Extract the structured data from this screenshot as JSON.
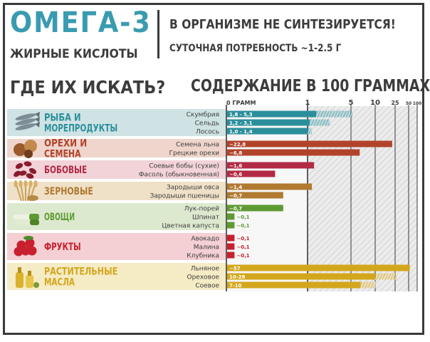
{
  "header": {
    "title": "ОМЕГА-3",
    "subtitle": "ЖИРНЫЕ КИСЛОТЫ",
    "not_synth": "В ОРГАНИЗМЕ НЕ СИНТЕЗИРУЕТСЯ!",
    "daily_need": "СУТОЧНАЯ ПОТРЕБНОСТЬ ~1-2.5 Г",
    "where": "ГДЕ ИХ ИСКАТЬ?",
    "content": "СОДЕРЖАНИЕ В 100 ГРАММАХ"
  },
  "chart_data": {
    "type": "bar",
    "orientation": "horizontal",
    "x_scale": "nonlinear",
    "x_ticks": [
      "0 ГРАММ",
      "1",
      "5",
      "10",
      "25",
      "50",
      "100"
    ],
    "x_tick_values": [
      0,
      1,
      5,
      10,
      25,
      50,
      100
    ],
    "groups": [
      {
        "name_lines": [
          "РЫБА И",
          "МОРЕПРОДУКТЫ"
        ],
        "icon": "fish-icon",
        "color": "#2b8f9b",
        "band": "#cfe3e5",
        "items": [
          {
            "label": "Скумбрия",
            "value_text": "1,8 - 5,3",
            "low": 1.8,
            "high": 5.3
          },
          {
            "label": "Сельдь",
            "value_text": "1,2 - 3,1",
            "low": 1.2,
            "high": 3.1
          },
          {
            "label": "Лосось",
            "value_text": "1,0 - 1,4",
            "low": 1.0,
            "high": 1.4
          }
        ]
      },
      {
        "name_lines": [
          "ОРЕХИ И",
          "СЕМЕНА"
        ],
        "icon": "nuts-icon",
        "color": "#b2432b",
        "band": "#efd5cc",
        "items": [
          {
            "label": "Семена льна",
            "value_text": "~22,8",
            "low": 22.8,
            "high": 22.8
          },
          {
            "label": "Грецкие орехи",
            "value_text": "~6,8",
            "low": 6.8,
            "high": 6.8
          }
        ]
      },
      {
        "name_lines": [
          "БОБОВЫЕ"
        ],
        "icon": "beans-icon",
        "color": "#b22a45",
        "band": "#f2d3d8",
        "items": [
          {
            "label": "Соевые бобы (сухие)",
            "value_text": "~1,6",
            "low": 1.6,
            "high": 1.6
          },
          {
            "label": "Фасоль (обыкновенная)",
            "value_text": "~0,6",
            "low": 0.6,
            "high": 0.6
          }
        ]
      },
      {
        "name_lines": [
          "ЗЕРНОВЫЕ"
        ],
        "icon": "wheat-icon",
        "color": "#b07a30",
        "band": "#efe0c8",
        "items": [
          {
            "label": "Зародыши овса",
            "value_text": "~1,4",
            "low": 1.4,
            "high": 1.4
          },
          {
            "label": "Зародыши пшеницы",
            "value_text": "~0,7",
            "low": 0.7,
            "high": 0.7
          }
        ]
      },
      {
        "name_lines": [
          "ОВОЩИ"
        ],
        "icon": "leek-icon",
        "color": "#5e9a32",
        "band": "#dde9cf",
        "items": [
          {
            "label": "Лук-порей",
            "value_text": "~0,7",
            "low": 0.7,
            "high": 0.7
          },
          {
            "label": "Шпинат",
            "value_text": "~0,1",
            "low": 0.1,
            "high": 0.1
          },
          {
            "label": "Цветная капуста",
            "value_text": "~0,1",
            "low": 0.1,
            "high": 0.1
          }
        ]
      },
      {
        "name_lines": [
          "ФРУКТЫ"
        ],
        "icon": "raspberry-icon",
        "color": "#c8202e",
        "band": "#f4cfd3",
        "items": [
          {
            "label": "Авокадо",
            "value_text": "~0,1",
            "low": 0.1,
            "high": 0.1
          },
          {
            "label": "Малина",
            "value_text": "~0,1",
            "low": 0.1,
            "high": 0.1
          },
          {
            "label": "Клубника",
            "value_text": "~0,1",
            "low": 0.1,
            "high": 0.1
          }
        ]
      },
      {
        "name_lines": [
          "РАСТИТЕЛЬНЫЕ",
          "МАСЛА"
        ],
        "icon": "oil-bottle-icon",
        "color": "#d3a71c",
        "band": "#f5ebc5",
        "items": [
          {
            "label": "Льняное",
            "value_text": "~57",
            "low": 57,
            "high": 57
          },
          {
            "label": "Ореховое",
            "value_text": "10-28",
            "low": 10,
            "high": 28
          },
          {
            "label": "Соевое",
            "value_text": "7-10",
            "low": 7,
            "high": 10
          }
        ]
      }
    ]
  }
}
